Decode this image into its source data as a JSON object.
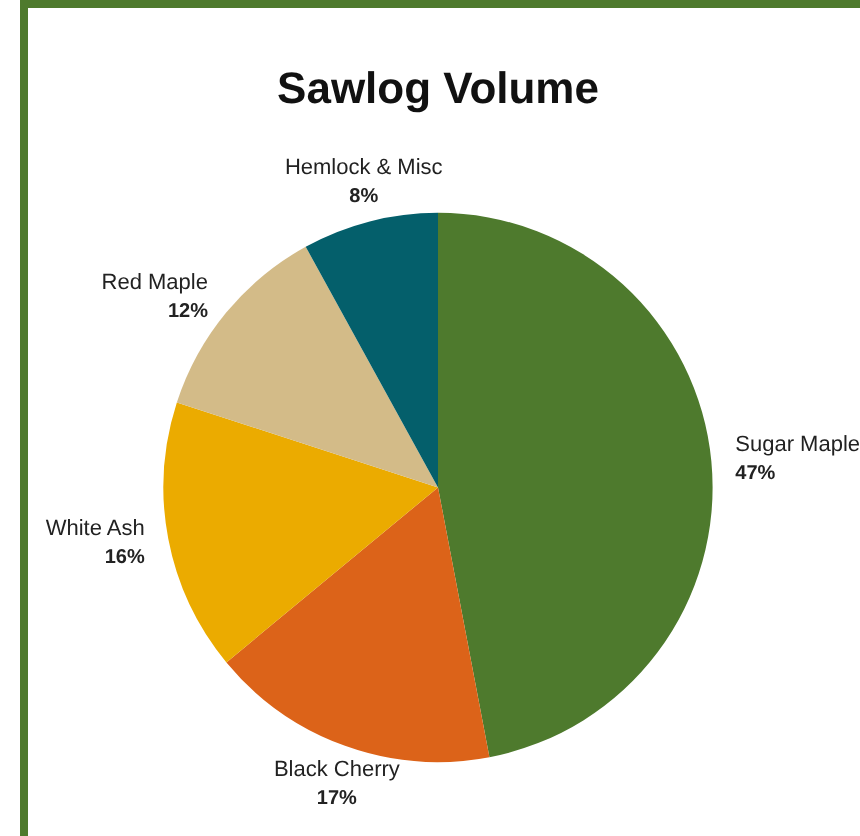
{
  "chart_data": {
    "type": "pie",
    "title": "Sawlog Volume",
    "categories": [
      "Sugar Maple",
      "Black Cherry",
      "White Ash",
      "Red Maple",
      "Hemlock & Misc"
    ],
    "values": [
      47,
      17,
      16,
      12,
      8
    ],
    "colors": [
      "#4e7a2d",
      "#dc6319",
      "#ebab00",
      "#d3bb88",
      "#045f6b"
    ],
    "value_labels": [
      "47%",
      "17%",
      "16%",
      "12%",
      "8%"
    ],
    "legend": false
  }
}
